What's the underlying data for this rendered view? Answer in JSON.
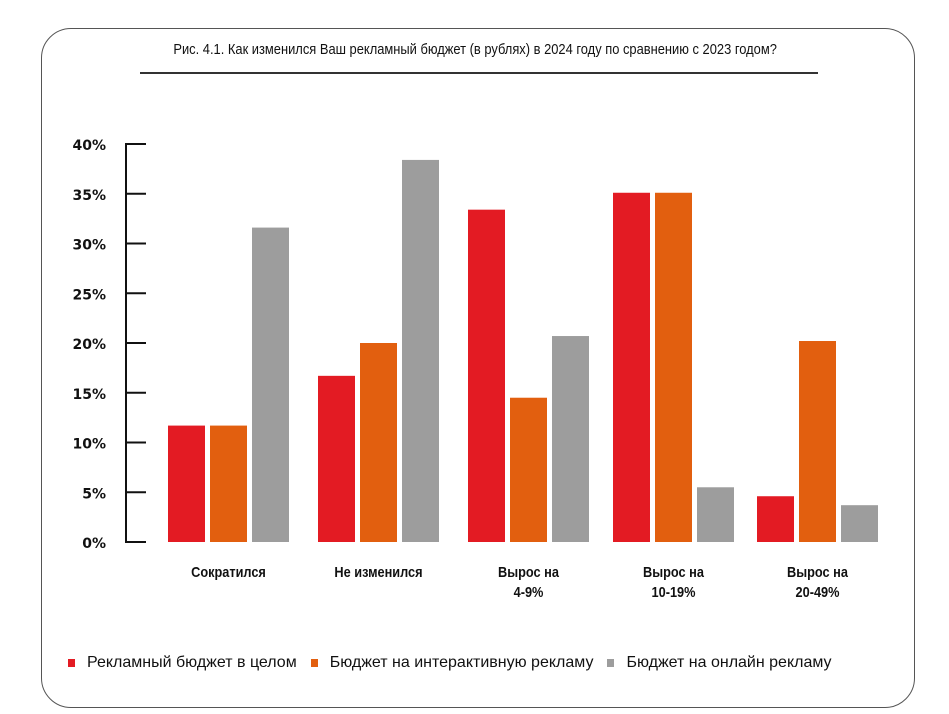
{
  "title": "Рис. 4.1.  Как изменился Ваш рекламный бюджет (в рублях) в 2024 году по сравнению с 2023 годом?",
  "chart_data": {
    "type": "bar",
    "title": "Рис. 4.1.  Как изменился Ваш рекламный бюджет (в рублях) в 2024 году по сравнению с 2023 годом?",
    "xlabel": "",
    "ylabel": "",
    "ylim": [
      0,
      40
    ],
    "yticks": [
      0,
      5,
      10,
      15,
      20,
      25,
      30,
      35,
      40
    ],
    "ytick_labels": [
      "0%",
      "5%",
      "10%",
      "15%",
      "20%",
      "25%",
      "30%",
      "35%",
      "40%"
    ],
    "grid": false,
    "legend_position": "bottom",
    "categories": [
      [
        "Сократился"
      ],
      [
        "Не изменился"
      ],
      [
        "Вырос на",
        "4-9%"
      ],
      [
        "Вырос на",
        "10-19%"
      ],
      [
        "Вырос на",
        "20-49%"
      ]
    ],
    "series": [
      {
        "name": "Рекламный бюджет в целом",
        "color": "#e31b23",
        "values": [
          11.7,
          16.7,
          33.4,
          35.1,
          4.6
        ]
      },
      {
        "name": "Бюджет на интерактивную рекламу",
        "color": "#e25f0f",
        "values": [
          11.7,
          20.0,
          14.5,
          35.1,
          20.2
        ]
      },
      {
        "name": "Бюджет на онлайн рекламу",
        "color": "#9d9d9d",
        "values": [
          31.6,
          38.4,
          20.7,
          5.5,
          3.7
        ]
      }
    ]
  }
}
